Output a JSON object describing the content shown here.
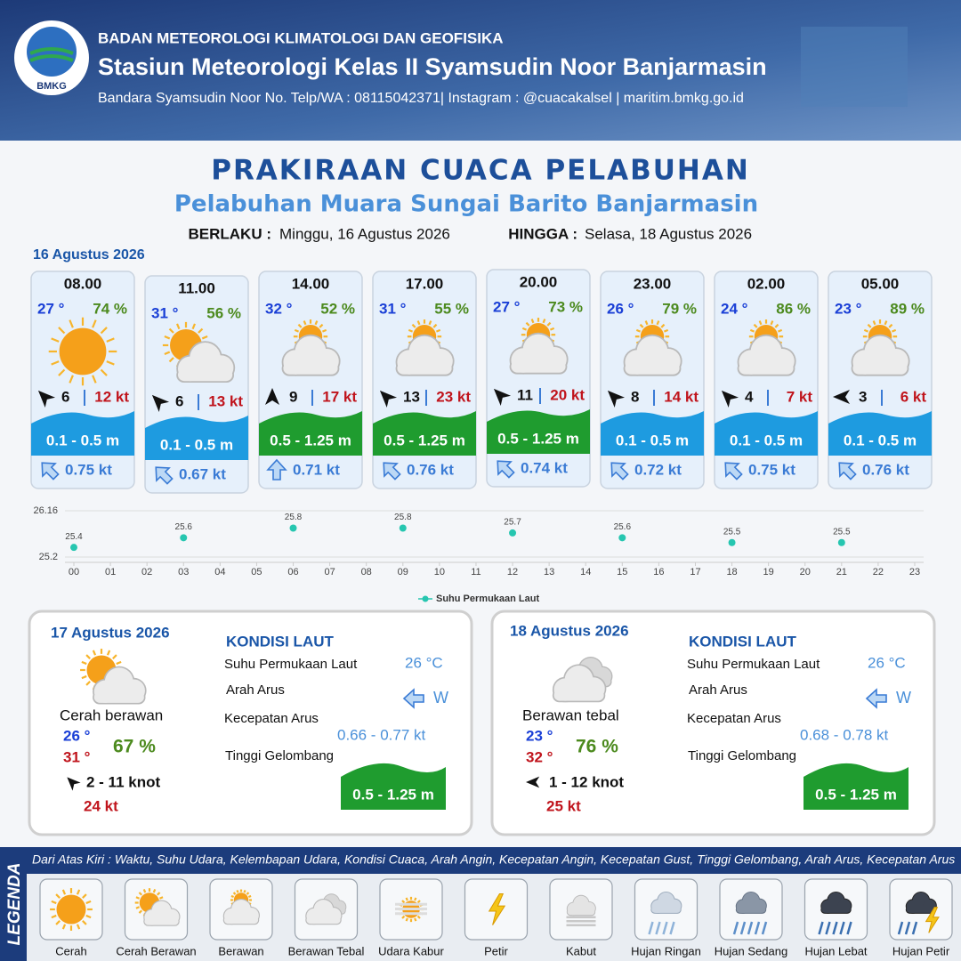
{
  "header": {
    "logo": "BMKG",
    "org": "BADAN METEOROLOGI KLIMATOLOGI DAN GEOFISIKA",
    "station": "Stasiun Meteorologi Kelas II Syamsudin Noor Banjarmasin",
    "contact": "Bandara Syamsudin Noor No. Telp/WA : 08115042371| Instagram : @cuacakalsel | maritim.bmkg.go.id"
  },
  "title": "PRAKIRAAN CUACA PELABUHAN",
  "subtitle": "Pelabuhan Muara Sungai Barito Banjarmasin",
  "validity": {
    "from_label": "BERLAKU :",
    "from": "Minggu, 16 Agustus 2026",
    "to_label": "HINGGA :",
    "to": "Selasa, 18 Agustus 2026"
  },
  "day1": {
    "date": "16 Agustus 2026",
    "forecasts": [
      {
        "time": "08.00",
        "temp": "27 °",
        "humidity": "74 %",
        "wind": "6",
        "gust": "12 kt",
        "wave": "0.1 - 0.5 m",
        "current": "0.75 kt"
      },
      {
        "time": "11.00",
        "temp": "31 °",
        "humidity": "56 %",
        "wind": "6",
        "gust": "13 kt",
        "wave": "0.1 - 0.5 m",
        "current": "0.67 kt"
      },
      {
        "time": "14.00",
        "temp": "32 °",
        "humidity": "52 %",
        "wind": "9",
        "gust": "17 kt",
        "wave": "0.5 - 1.25 m",
        "current": "0.71 kt"
      },
      {
        "time": "17.00",
        "temp": "31 °",
        "humidity": "55 %",
        "wind": "13",
        "gust": "23 kt",
        "wave": "0.5 - 1.25 m",
        "current": "0.76 kt"
      },
      {
        "time": "20.00",
        "temp": "27 °",
        "humidity": "73 %",
        "wind": "11",
        "gust": "20 kt",
        "wave": "0.5 - 1.25 m",
        "current": "0.74 kt"
      },
      {
        "time": "23.00",
        "temp": "26 °",
        "humidity": "79 %",
        "wind": "8",
        "gust": "14 kt",
        "wave": "0.1 - 0.5 m",
        "current": "0.72 kt"
      },
      {
        "time": "02.00",
        "temp": "24 °",
        "humidity": "86 %",
        "wind": "4",
        "gust": "7 kt",
        "wave": "0.1 - 0.5 m",
        "current": "0.75 kt"
      },
      {
        "time": "05.00",
        "temp": "23 °",
        "humidity": "89 %",
        "wind": "3",
        "gust": "6 kt",
        "wave": "0.1 - 0.5 m",
        "current": "0.76 kt"
      }
    ]
  },
  "chart_data": {
    "type": "scatter",
    "x": [
      0,
      3,
      6,
      9,
      12,
      15,
      18,
      21
    ],
    "series": [
      {
        "name": "Suhu Permukaan Laut",
        "color": "#26c6b0",
        "values": [
          25.4,
          25.6,
          25.8,
          25.8,
          25.7,
          25.6,
          25.5,
          25.5
        ]
      }
    ],
    "xlim": [
      0,
      23
    ],
    "ylim": [
      25.2,
      26.16
    ],
    "xticks": [
      {
        "value": 0,
        "label": "00"
      },
      {
        "value": 1,
        "label": "01"
      },
      {
        "value": 2,
        "label": "02"
      },
      {
        "value": 3,
        "label": "03"
      },
      {
        "value": 4,
        "label": "04"
      },
      {
        "value": 5,
        "label": "05"
      },
      {
        "value": 6,
        "label": "06"
      },
      {
        "value": 7,
        "label": "07"
      },
      {
        "value": 8,
        "label": "08"
      },
      {
        "value": 9,
        "label": "09"
      },
      10,
      11,
      12,
      13,
      14,
      15,
      16,
      17,
      18,
      19,
      20,
      21,
      22,
      23
    ],
    "yticks": [
      25.2,
      26.16
    ],
    "grid": true,
    "legend": "bottom"
  },
  "days": [
    {
      "date": "17 Agustus 2026",
      "condition": "Cerah berawan",
      "temp_min": "26 °",
      "temp_max": "31 °",
      "humidity": "67 %",
      "wind": "2  - 11 knot",
      "gust": "24 kt",
      "sea_title": "KONDISI LAUT",
      "sst_label": "Suhu Permukaan Laut",
      "sst": "26 °C",
      "dir_label": "Arah Arus",
      "dir": "W",
      "speed_label": "Kecepatan Arus",
      "speed": "0.66 - 0.77 kt",
      "wave_label": "Tinggi Gelombang",
      "wave": "0.5 - 1.25 m"
    },
    {
      "date": "18 Agustus 2026",
      "condition": "Berawan tebal",
      "temp_min": "23 °",
      "temp_max": "32 °",
      "humidity": "76 %",
      "wind": "1  - 12 knot",
      "gust": "25 kt",
      "sea_title": "KONDISI LAUT",
      "sst_label": "Suhu Permukaan Laut",
      "sst": "26 °C",
      "dir_label": "Arah Arus",
      "dir": "W",
      "speed_label": "Kecepatan Arus",
      "speed": "0.68 - 0.78 kt",
      "wave_label": "Tinggi Gelombang",
      "wave": "0.5 - 1.25 m"
    }
  ],
  "legend": {
    "title": "LEGENDA",
    "description": "Dari Atas Kiri : Waktu, Suhu Udara, Kelembapan Udara, Kondisi Cuaca, Arah Angin, Kecepatan Angin, Kecepatan Gust, Tinggi Gelombang, Arah Arus, Kecepatan Arus",
    "items": [
      "Cerah",
      "Cerah Berawan",
      "Berawan",
      "Berawan Tebal",
      "Udara Kabur",
      "Petir",
      "Kabut",
      "Hujan Ringan",
      "Hujan Sedang",
      "Hujan Lebat",
      "Hujan Petir"
    ]
  }
}
